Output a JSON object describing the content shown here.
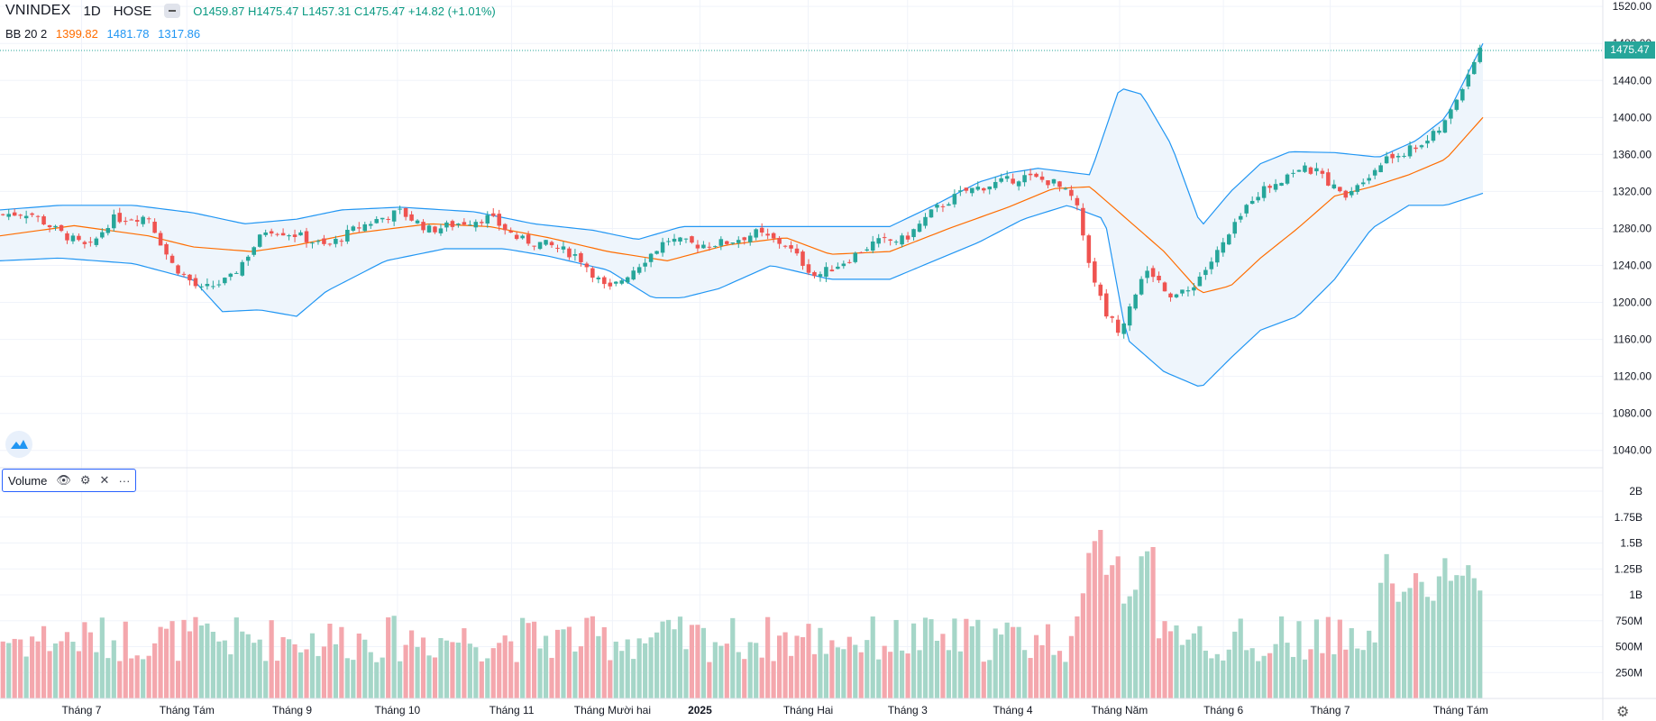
{
  "header": {
    "symbol": "VNINDEX",
    "interval": "1D",
    "exchange": "HOSE",
    "open": "O1459.87",
    "high": "H1475.47",
    "low": "L1457.31",
    "close": "C1475.47",
    "change": "+14.82 (+1.01%)"
  },
  "bb_legend": {
    "label": "BB 20 2",
    "basis": "1399.82",
    "upper": "1481.78",
    "lower": "1317.86"
  },
  "volume_legend": {
    "label": "Volume"
  },
  "price_tag": "1475.47",
  "colors": {
    "up": "#26a69a",
    "down": "#ef5350",
    "vol_up": "#a5d6c8",
    "vol_down": "#f4a7ad",
    "basis": "#ff6d00",
    "band": "#2196f3",
    "band_fill": "#eef5fc"
  },
  "chart_data": {
    "type": "candlestick",
    "price_axis": {
      "ticks": [
        "1520.00",
        "1480.00",
        "1440.00",
        "1400.00",
        "1360.00",
        "1320.00",
        "1280.00",
        "1240.00",
        "1200.00",
        "1160.00",
        "1120.00",
        "1080.00",
        "1040.00"
      ],
      "range": [
        1030,
        1527
      ]
    },
    "volume_axis": {
      "ticks": [
        "2B",
        "1.75B",
        "1.5B",
        "1.25B",
        "1B",
        "750M",
        "500M",
        "250M"
      ],
      "range": [
        0,
        2.0
      ]
    },
    "time_axis": {
      "labels": [
        "Tháng 7",
        "Tháng Tám",
        "Tháng 9",
        "Tháng 10",
        "Tháng 11",
        "Tháng Mười hai",
        "2025",
        "Tháng Hai",
        "Tháng 3",
        "Tháng 4",
        "Tháng Năm",
        "Tháng 6",
        "Tháng 7",
        "Tháng Tám"
      ],
      "positions": [
        0.055,
        0.126,
        0.197,
        0.268,
        0.345,
        0.413,
        0.472,
        0.545,
        0.612,
        0.683,
        0.755,
        0.825,
        0.897,
        0.985
      ]
    },
    "close_path": [
      [
        0.0,
        1295
      ],
      [
        0.02,
        1297
      ],
      [
        0.04,
        1276
      ],
      [
        0.06,
        1258
      ],
      [
        0.075,
        1290
      ],
      [
        0.1,
        1293
      ],
      [
        0.115,
        1243
      ],
      [
        0.135,
        1213
      ],
      [
        0.155,
        1225
      ],
      [
        0.18,
        1280
      ],
      [
        0.2,
        1273
      ],
      [
        0.22,
        1260
      ],
      [
        0.24,
        1280
      ],
      [
        0.255,
        1290
      ],
      [
        0.27,
        1298
      ],
      [
        0.29,
        1278
      ],
      [
        0.31,
        1286
      ],
      [
        0.33,
        1292
      ],
      [
        0.35,
        1268
      ],
      [
        0.37,
        1262
      ],
      [
        0.39,
        1250
      ],
      [
        0.41,
        1212
      ],
      [
        0.43,
        1240
      ],
      [
        0.45,
        1268
      ],
      [
        0.47,
        1262
      ],
      [
        0.49,
        1265
      ],
      [
        0.51,
        1275
      ],
      [
        0.53,
        1262
      ],
      [
        0.55,
        1228
      ],
      [
        0.57,
        1245
      ],
      [
        0.59,
        1265
      ],
      [
        0.61,
        1268
      ],
      [
        0.63,
        1300
      ],
      [
        0.65,
        1320
      ],
      [
        0.67,
        1328
      ],
      [
        0.69,
        1336
      ],
      [
        0.71,
        1330
      ],
      [
        0.725,
        1310
      ],
      [
        0.735,
        1240
      ],
      [
        0.745,
        1190
      ],
      [
        0.755,
        1170
      ],
      [
        0.765,
        1210
      ],
      [
        0.775,
        1235
      ],
      [
        0.79,
        1208
      ],
      [
        0.8,
        1210
      ],
      [
        0.815,
        1240
      ],
      [
        0.83,
        1275
      ],
      [
        0.845,
        1315
      ],
      [
        0.86,
        1330
      ],
      [
        0.875,
        1345
      ],
      [
        0.89,
        1340
      ],
      [
        0.905,
        1315
      ],
      [
        0.92,
        1335
      ],
      [
        0.935,
        1355
      ],
      [
        0.95,
        1365
      ],
      [
        0.965,
        1378
      ],
      [
        0.975,
        1395
      ],
      [
        0.985,
        1430
      ],
      [
        0.995,
        1465
      ],
      [
        1.0,
        1475
      ]
    ],
    "basis": [
      [
        0.0,
        1272
      ],
      [
        0.05,
        1283
      ],
      [
        0.1,
        1272
      ],
      [
        0.13,
        1260
      ],
      [
        0.17,
        1255
      ],
      [
        0.2,
        1262
      ],
      [
        0.24,
        1275
      ],
      [
        0.29,
        1285
      ],
      [
        0.33,
        1282
      ],
      [
        0.37,
        1270
      ],
      [
        0.41,
        1255
      ],
      [
        0.45,
        1245
      ],
      [
        0.49,
        1262
      ],
      [
        0.53,
        1270
      ],
      [
        0.56,
        1252
      ],
      [
        0.6,
        1255
      ],
      [
        0.64,
        1280
      ],
      [
        0.68,
        1303
      ],
      [
        0.71,
        1323
      ],
      [
        0.735,
        1325
      ],
      [
        0.76,
        1290
      ],
      [
        0.785,
        1255
      ],
      [
        0.81,
        1210
      ],
      [
        0.83,
        1218
      ],
      [
        0.85,
        1248
      ],
      [
        0.875,
        1280
      ],
      [
        0.9,
        1315
      ],
      [
        0.925,
        1325
      ],
      [
        0.95,
        1338
      ],
      [
        0.975,
        1355
      ],
      [
        1.0,
        1400
      ]
    ],
    "upper": [
      [
        0.0,
        1300
      ],
      [
        0.04,
        1305
      ],
      [
        0.09,
        1305
      ],
      [
        0.13,
        1297
      ],
      [
        0.165,
        1285
      ],
      [
        0.2,
        1290
      ],
      [
        0.23,
        1300
      ],
      [
        0.27,
        1303
      ],
      [
        0.32,
        1298
      ],
      [
        0.36,
        1285
      ],
      [
        0.4,
        1278
      ],
      [
        0.43,
        1268
      ],
      [
        0.46,
        1282
      ],
      [
        0.5,
        1282
      ],
      [
        0.53,
        1282
      ],
      [
        0.56,
        1282
      ],
      [
        0.6,
        1282
      ],
      [
        0.63,
        1305
      ],
      [
        0.66,
        1330
      ],
      [
        0.68,
        1340
      ],
      [
        0.7,
        1345
      ],
      [
        0.735,
        1338
      ],
      [
        0.755,
        1432
      ],
      [
        0.77,
        1425
      ],
      [
        0.79,
        1370
      ],
      [
        0.81,
        1282
      ],
      [
        0.83,
        1320
      ],
      [
        0.85,
        1350
      ],
      [
        0.87,
        1363
      ],
      [
        0.9,
        1362
      ],
      [
        0.93,
        1357
      ],
      [
        0.955,
        1375
      ],
      [
        0.975,
        1400
      ],
      [
        1.0,
        1480
      ]
    ],
    "lower": [
      [
        0.0,
        1245
      ],
      [
        0.04,
        1248
      ],
      [
        0.09,
        1242
      ],
      [
        0.13,
        1225
      ],
      [
        0.15,
        1190
      ],
      [
        0.175,
        1192
      ],
      [
        0.2,
        1185
      ],
      [
        0.22,
        1212
      ],
      [
        0.26,
        1245
      ],
      [
        0.3,
        1258
      ],
      [
        0.34,
        1258
      ],
      [
        0.37,
        1250
      ],
      [
        0.41,
        1235
      ],
      [
        0.44,
        1205
      ],
      [
        0.46,
        1205
      ],
      [
        0.485,
        1215
      ],
      [
        0.52,
        1240
      ],
      [
        0.56,
        1225
      ],
      [
        0.6,
        1225
      ],
      [
        0.63,
        1245
      ],
      [
        0.66,
        1265
      ],
      [
        0.69,
        1290
      ],
      [
        0.72,
        1305
      ],
      [
        0.745,
        1290
      ],
      [
        0.76,
        1160
      ],
      [
        0.785,
        1125
      ],
      [
        0.81,
        1108
      ],
      [
        0.83,
        1140
      ],
      [
        0.85,
        1170
      ],
      [
        0.875,
        1185
      ],
      [
        0.9,
        1225
      ],
      [
        0.925,
        1280
      ],
      [
        0.95,
        1305
      ],
      [
        0.975,
        1305
      ],
      [
        1.0,
        1318
      ]
    ],
    "last": {
      "open": 1459.87,
      "high": 1475.47,
      "low": 1457.31,
      "close": 1475.47
    }
  }
}
